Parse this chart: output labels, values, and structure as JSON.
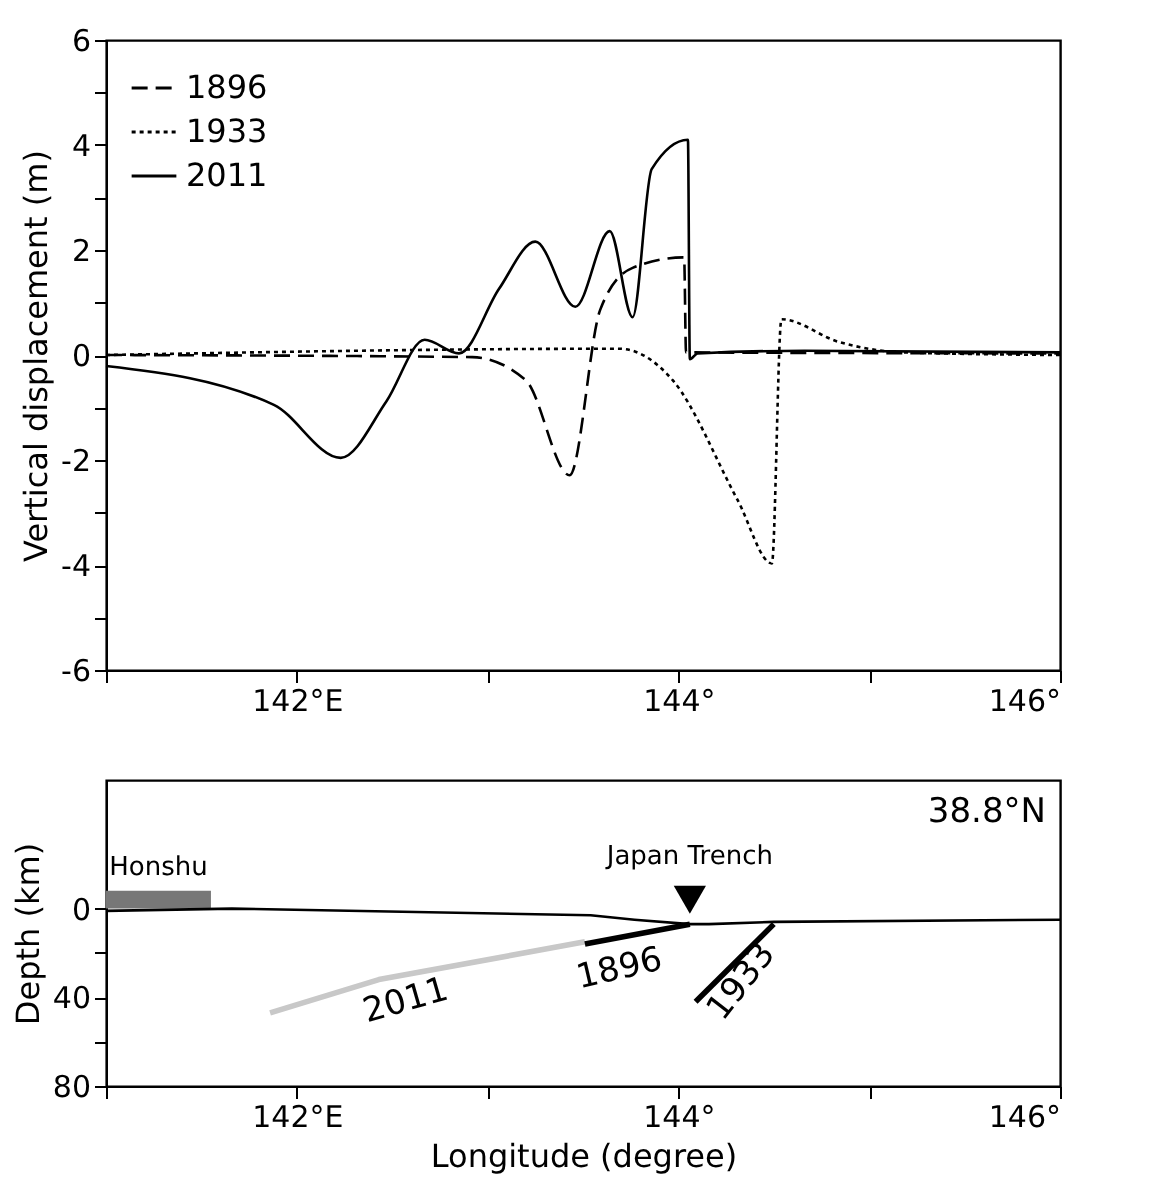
{
  "chart_data": [
    {
      "type": "line",
      "ylabel": "Vertical displacement (m)",
      "xlim": [
        141,
        146
      ],
      "ylim": [
        -6,
        6
      ],
      "xticks": [
        {
          "value": 141,
          "label": null
        },
        {
          "value": 142,
          "label": "142°E"
        },
        {
          "value": 143,
          "label": null
        },
        {
          "value": 144,
          "label": "144°"
        },
        {
          "value": 145,
          "label": null
        },
        {
          "value": 146,
          "label": "146°"
        }
      ],
      "yticks": [
        -6,
        {
          "value": -5,
          "label": null
        },
        -4,
        {
          "value": -3,
          "label": null
        },
        -2,
        {
          "value": -1,
          "label": null
        },
        0,
        {
          "value": 1,
          "label": null
        },
        2,
        {
          "value": 3,
          "label": null
        },
        4,
        {
          "value": 5,
          "label": null
        },
        6
      ],
      "grid": false,
      "legend": "top left",
      "series": [
        {
          "name": "1896",
          "color": "#000000",
          "line_style": "dashed",
          "x": [
            141,
            142.92,
            143.2,
            143.43,
            143.59,
            143.76,
            144.03,
            144.04,
            146
          ],
          "values": [
            0,
            -0.04,
            -0.48,
            -2.29,
            0.86,
            1.66,
            1.86,
            0.05,
            0.03
          ]
        },
        {
          "name": "1933",
          "color": "#000000",
          "line_style": "dotted",
          "x": [
            141,
            143.69,
            143.97,
            144.31,
            144.49,
            144.54,
            144.84,
            145.18,
            146
          ],
          "values": [
            0,
            0.12,
            -0.48,
            -2.76,
            -3.97,
            0.68,
            0.25,
            0.05,
            0
          ]
        },
        {
          "name": "2011",
          "color": "#000000",
          "line_style": "solid",
          "x": [
            141,
            141.88,
            142.23,
            142.47,
            142.67,
            142.85,
            143.06,
            143.25,
            143.46,
            143.64,
            143.76,
            143.86,
            144.05,
            144.06,
            144.1,
            144.66,
            146
          ],
          "values": [
            -0.21,
            -0.95,
            -1.96,
            -0.88,
            0.29,
            0.03,
            1.26,
            2.16,
            0.92,
            2.36,
            0.72,
            3.54,
            4.1,
            -0.08,
            0.03,
            0.08,
            0.05
          ]
        }
      ]
    },
    {
      "type": "line",
      "xlabel": "Longitude (degree)",
      "ylabel": "Depth (km)",
      "xlim": [
        141,
        146
      ],
      "ylim": [
        80,
        -58
      ],
      "xticks": [
        {
          "value": 141,
          "label": null
        },
        {
          "value": 142,
          "label": "142°E"
        },
        {
          "value": 143,
          "label": null
        },
        {
          "value": 144,
          "label": "144°"
        },
        {
          "value": 145,
          "label": null
        },
        {
          "value": 146,
          "label": "146°"
        }
      ],
      "yticks": [
        0,
        {
          "value": 20,
          "label": null
        },
        40,
        {
          "value": 60,
          "label": null
        },
        80
      ],
      "grid": false,
      "legend": false,
      "series": [
        {
          "type": "area",
          "color": "#777777",
          "x": [
            141,
            141.55
          ],
          "values": [
            -8,
            -8
          ]
        },
        {
          "color": "#000000",
          "line_style": "solid",
          "x": [
            141,
            141.66,
            143.54,
            143.77,
            144.06,
            144.16,
            144.5,
            146
          ],
          "values": [
            1,
            0,
            3,
            5,
            7,
            7,
            6,
            5
          ]
        },
        {
          "color": "#c8c8c8",
          "line_style": "solid",
          "x": [
            141.86,
            142.43,
            143.51
          ],
          "values": [
            47,
            32,
            15
          ]
        },
        {
          "color": "#000000",
          "line_style": "solid",
          "x": [
            143.51,
            144.06
          ],
          "values": [
            16,
            7
          ]
        },
        {
          "color": "#000000",
          "line_style": "solid",
          "x": [
            144.09,
            144.5
          ],
          "values": [
            42,
            7
          ]
        },
        {
          "type": "scatter",
          "marker": "triangle",
          "color": "#000000",
          "x": [
            144.06
          ],
          "values": [
            -4
          ]
        }
      ],
      "annotations": [
        "38.8°N",
        {
          "text": "Honshu",
          "x": 141.275,
          "y": -8
        },
        {
          "text": "Japan Trench",
          "x": 144.06,
          "y": -4
        },
        {
          "text": "2011",
          "x": 142.43,
          "y": 32
        },
        {
          "text": "1896",
          "x": 143.51,
          "y": 16
        },
        {
          "text": "1933",
          "x": 144.09,
          "y": 42
        }
      ]
    }
  ]
}
